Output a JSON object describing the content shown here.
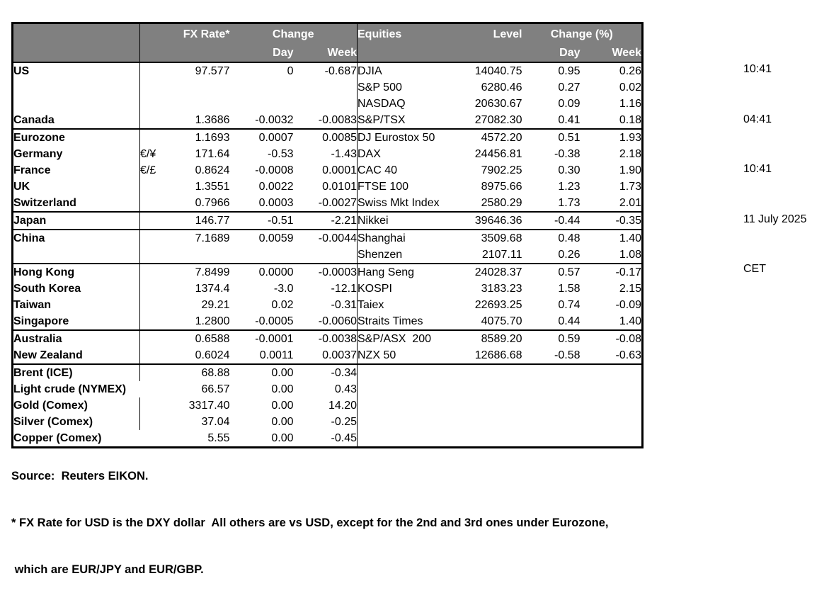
{
  "colors": {
    "header_bg": "#808080",
    "header_text": "#ffffff",
    "border": "#000000",
    "body_text": "#000000"
  },
  "timestamps": {
    "lines": [
      "10:41",
      "04:41",
      "10:41",
      "11 July 2025",
      "CET"
    ]
  },
  "table": {
    "fx_header": {
      "rate": "FX Rate*",
      "change": "Change",
      "day": "Day",
      "week": "Week"
    },
    "eq_header": {
      "name": "Equities",
      "level": "Level",
      "change": "Change (%)",
      "day": "Day",
      "week": "Week"
    },
    "rows": [
      {
        "label": "US",
        "pair": "",
        "rate": "97.577",
        "day": "0",
        "week": "-0.687",
        "eq": "DJIA",
        "level": "14040.75",
        "eq_day": "0.95",
        "eq_week": "0.26",
        "section": false,
        "indent": false,
        "overflow": false
      },
      {
        "label": "",
        "pair": "",
        "rate": "",
        "day": "",
        "week": "",
        "eq": "S&P 500",
        "level": "6280.46",
        "eq_day": "0.27",
        "eq_week": "0.02",
        "section": false,
        "indent": false,
        "overflow": false
      },
      {
        "label": "",
        "pair": "",
        "rate": "",
        "day": "",
        "week": "",
        "eq": "NASDAQ",
        "level": "20630.67",
        "eq_day": "0.09",
        "eq_week": "1.16",
        "section": false,
        "indent": false,
        "overflow": false
      },
      {
        "label": "Canada",
        "pair": "",
        "rate": "1.3686",
        "day": "-0.0032",
        "week": "-0.0083",
        "eq": "S&P/TSX",
        "level": "27082.30",
        "eq_day": "0.41",
        "eq_week": "0.18",
        "section": false,
        "indent": false,
        "overflow": false
      },
      {
        "label": "Eurozone",
        "pair": "",
        "rate": "1.1693",
        "day": "0.0007",
        "week": "0.0085",
        "eq": "DJ Eurostox 50",
        "level": "4572.20",
        "eq_day": "0.51",
        "eq_week": "1.93",
        "section": true,
        "indent": false,
        "overflow": false
      },
      {
        "label": "Germany",
        "pair": "€/¥",
        "rate": "171.64",
        "day": "-0.53",
        "week": "-1.43",
        "eq": "DAX",
        "level": "24456.81",
        "eq_day": "-0.38",
        "eq_week": "2.18",
        "section": false,
        "indent": true,
        "overflow": false
      },
      {
        "label": "France",
        "pair": "€/£",
        "rate": "0.8624",
        "day": "-0.0008",
        "week": "0.0001",
        "eq": "CAC 40",
        "level": "7902.25",
        "eq_day": "0.30",
        "eq_week": "1.90",
        "section": false,
        "indent": true,
        "overflow": false
      },
      {
        "label": "UK",
        "pair": "",
        "rate": "1.3551",
        "day": "0.0022",
        "week": "0.0101",
        "eq": "FTSE 100",
        "level": "8975.66",
        "eq_day": "1.23",
        "eq_week": "1.73",
        "section": false,
        "indent": false,
        "overflow": false
      },
      {
        "label": "Switzerland",
        "pair": "",
        "rate": "0.7966",
        "day": "0.0003",
        "week": "-0.0027",
        "eq": "Swiss Mkt Index",
        "level": "2580.29",
        "eq_day": "1.73",
        "eq_week": "2.01",
        "section": false,
        "indent": false,
        "overflow": false
      },
      {
        "label": "Japan",
        "pair": "",
        "rate": "146.77",
        "day": "-0.51",
        "week": "-2.21",
        "eq": "Nikkei",
        "level": "39646.36",
        "eq_day": "-0.44",
        "eq_week": "-0.35",
        "section": true,
        "indent": false,
        "overflow": false
      },
      {
        "label": "China",
        "pair": "",
        "rate": "7.1689",
        "day": "0.0059",
        "week": "-0.0044",
        "eq": "Shanghai",
        "level": "3509.68",
        "eq_day": "0.48",
        "eq_week": "1.40",
        "section": true,
        "indent": false,
        "overflow": false
      },
      {
        "label": "",
        "pair": "",
        "rate": "",
        "day": "",
        "week": "",
        "eq": "Shenzen",
        "level": "2107.11",
        "eq_day": "0.26",
        "eq_week": "1.08",
        "section": false,
        "indent": false,
        "overflow": false
      },
      {
        "label": "Hong Kong",
        "pair": "",
        "rate": "7.8499",
        "day": "0.0000",
        "week": "-0.0003",
        "eq": "Hang Seng",
        "level": "24028.37",
        "eq_day": "0.57",
        "eq_week": "-0.17",
        "section": true,
        "indent": false,
        "overflow": false
      },
      {
        "label": "South Korea",
        "pair": "",
        "rate": "1374.4",
        "day": "-3.0",
        "week": "-12.1",
        "eq": "KOSPI",
        "level": "3183.23",
        "eq_day": "1.58",
        "eq_week": "2.15",
        "section": false,
        "indent": false,
        "overflow": false
      },
      {
        "label": "Taiwan",
        "pair": "",
        "rate": "29.21",
        "day": "0.02",
        "week": "-0.31",
        "eq": "Taiex",
        "level": "22693.25",
        "eq_day": "0.74",
        "eq_week": "-0.09",
        "section": false,
        "indent": false,
        "overflow": false
      },
      {
        "label": "Singapore",
        "pair": "",
        "rate": "1.2800",
        "day": "-0.0005",
        "week": "-0.0060",
        "eq": "Straits Times",
        "level": "4075.70",
        "eq_day": "0.44",
        "eq_week": "1.40",
        "section": false,
        "indent": false,
        "overflow": false
      },
      {
        "label": "Australia",
        "pair": "",
        "rate": "0.6588",
        "day": "-0.0001",
        "week": "-0.0038",
        "eq": "S&P/ASX  200",
        "level": "8589.20",
        "eq_day": "0.59",
        "eq_week": "-0.08",
        "section": true,
        "indent": false,
        "overflow": false
      },
      {
        "label": "New Zealand",
        "pair": "",
        "rate": "0.6024",
        "day": "0.0011",
        "week": "0.0037",
        "eq": "NZX 50",
        "level": "12686.68",
        "eq_day": "-0.58",
        "eq_week": "-0.63",
        "section": false,
        "indent": false,
        "overflow": false
      },
      {
        "label": "Brent (ICE)",
        "pair": "",
        "rate": "68.88",
        "day": "0.00",
        "week": "-0.34",
        "eq": "",
        "level": "",
        "eq_day": "",
        "eq_week": "",
        "section": true,
        "indent": false,
        "overflow": false
      },
      {
        "label": "Light crude (NYMEX)",
        "pair": "",
        "rate": "66.57",
        "day": "0.00",
        "week": "0.43",
        "eq": "",
        "level": "",
        "eq_day": "",
        "eq_week": "",
        "section": false,
        "indent": false,
        "overflow": true
      },
      {
        "label": "Gold (Comex)",
        "pair": "",
        "rate": "3317.40",
        "day": "0.00",
        "week": "14.20",
        "eq": "",
        "level": "",
        "eq_day": "",
        "eq_week": "",
        "section": false,
        "indent": false,
        "overflow": false
      },
      {
        "label": "Silver (Comex)",
        "pair": "",
        "rate": "37.04",
        "day": "0.00",
        "week": "-0.25",
        "eq": "",
        "level": "",
        "eq_day": "",
        "eq_week": "",
        "section": false,
        "indent": false,
        "overflow": false
      },
      {
        "label": "Copper (Comex)",
        "pair": "",
        "rate": "5.55",
        "day": "0.00",
        "week": "-0.45",
        "eq": "",
        "level": "",
        "eq_day": "",
        "eq_week": "",
        "section": false,
        "indent": false,
        "overflow": true
      }
    ]
  },
  "footer": {
    "lines": [
      "Source:  Reuters EIKON.",
      "* FX Rate for USD is the DXY dollar  All others are vs USD, except for the 2nd and 3rd ones under Eurozone,",
      " which are EUR/JPY and EUR/GBP."
    ]
  }
}
